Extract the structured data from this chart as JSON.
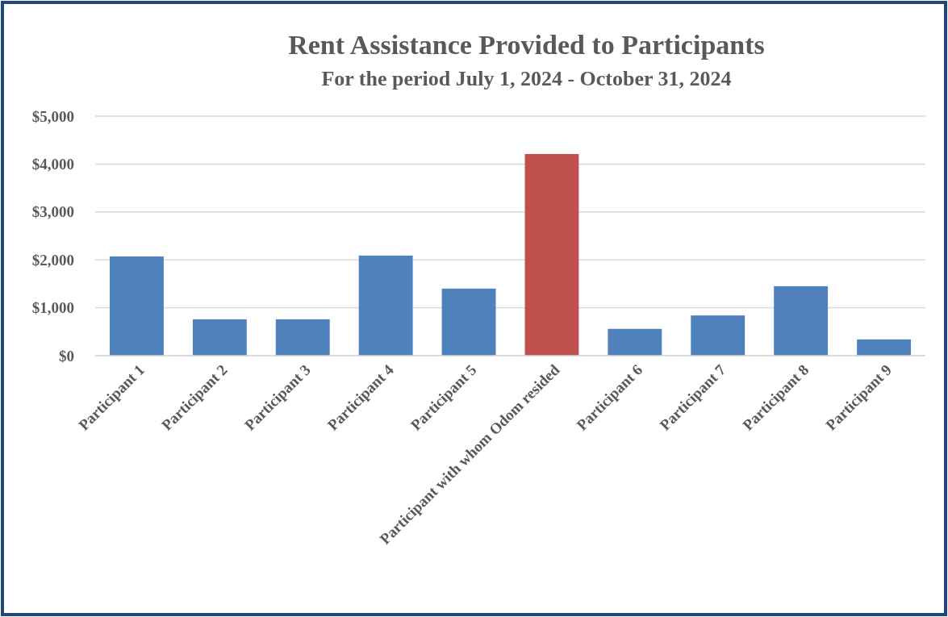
{
  "chart_data": {
    "type": "bar",
    "title": "Rent Assistance Provided to Participants",
    "subtitle": "For the period July 1, 2024 - October 31, 2024",
    "categories": [
      "Participant 1",
      "Participant 2",
      "Participant 3",
      "Participant 4",
      "Participant 5",
      "Participant with whom Odom resided",
      "Participant 6",
      "Participant 7",
      "Participant 8",
      "Participant 9"
    ],
    "values": [
      2070,
      760,
      760,
      2090,
      1400,
      4210,
      560,
      840,
      1450,
      340
    ],
    "colors": [
      "#4f81bd",
      "#4f81bd",
      "#4f81bd",
      "#4f81bd",
      "#4f81bd",
      "#c0504d",
      "#4f81bd",
      "#4f81bd",
      "#4f81bd",
      "#4f81bd"
    ],
    "ylim": [
      0,
      5000
    ],
    "yticks": [
      {
        "value": 0,
        "label": "$0"
      },
      {
        "value": 1000,
        "label": "$1,000"
      },
      {
        "value": 2000,
        "label": "$2,000"
      },
      {
        "value": 3000,
        "label": "$3,000"
      },
      {
        "value": 4000,
        "label": "$4,000"
      },
      {
        "value": 5000,
        "label": "$5,000"
      }
    ],
    "grid": "y"
  }
}
